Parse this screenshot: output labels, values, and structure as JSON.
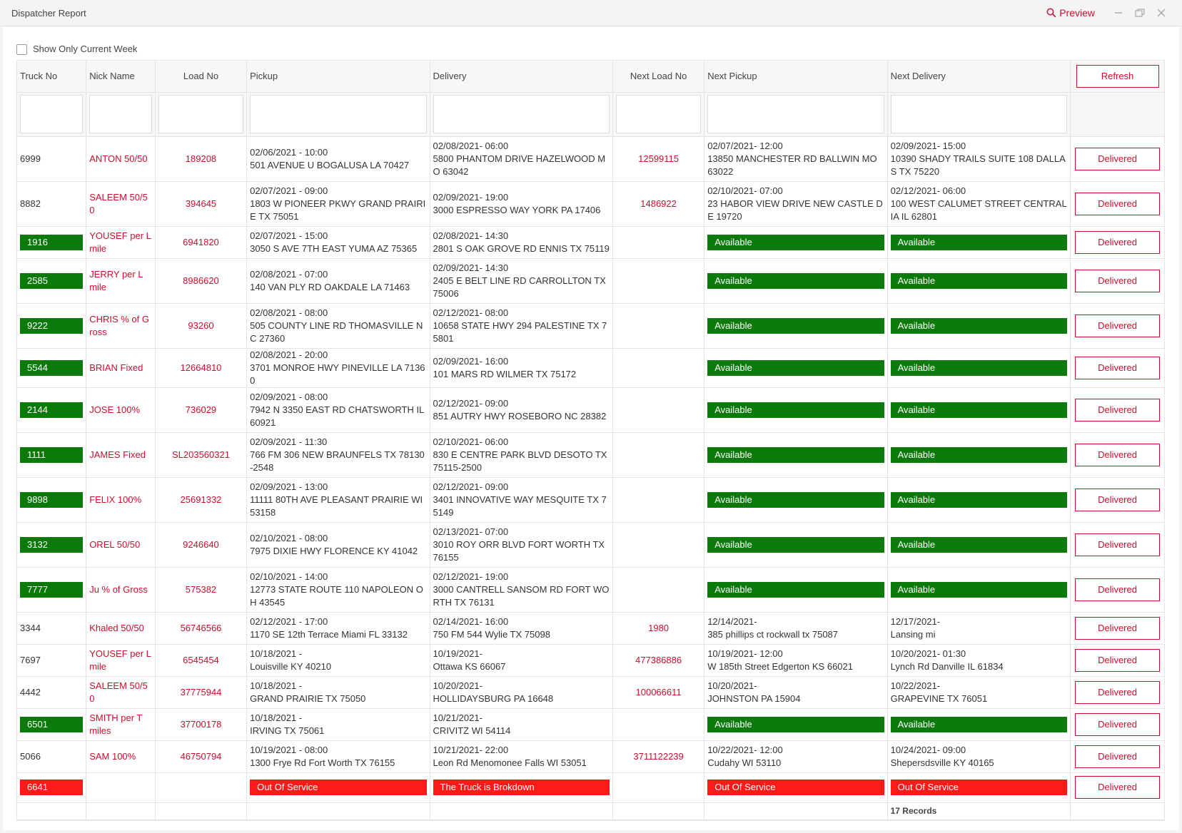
{
  "window": {
    "title": "Dispatcher Report",
    "preview_label": "Preview",
    "accent_color": "#c8102e"
  },
  "filter": {
    "show_current_week_label": "Show Only Current Week",
    "checked": false
  },
  "columns": {
    "truck_no": "Truck No",
    "nick_name": "Nick Name",
    "load_no": "Load No",
    "pickup": "Pickup",
    "delivery": "Delivery",
    "next_load_no": "Next Load No",
    "next_pickup": "Next Pickup",
    "next_delivery": "Next Delivery",
    "refresh_label": "Refresh"
  },
  "rows": [
    {
      "truck": "6999",
      "truck_status": "none",
      "nick": "ANTON 50/50",
      "load": "189208",
      "pickup": "02/06/2021 - 10:00\n501 AVENUE U BOGALUSA LA 70427",
      "delivery": "02/08/2021- 06:00\n5800 PHANTOM DRIVE HAZELWOOD MO 63042",
      "next_load": "12599115",
      "next_pickup": "02/07/2021- 12:00\n13850 MANCHESTER RD BALLWIN MO 63022",
      "next_delivery": "02/09/2021- 15:00\n10390 SHADY TRAILS SUITE 108 DALLAS TX 75220",
      "status": "Delivered"
    },
    {
      "truck": "8882",
      "truck_status": "none",
      "nick": "SALEEM 50/50",
      "load": "394645",
      "pickup": "02/07/2021 - 09:00\n1803 W PIONEER PKWY GRAND PRAIRIE TX 75051",
      "delivery": "02/09/2021- 19:00\n3000 ESPRESSO WAY YORK PA 17406",
      "next_load": "1486922",
      "next_pickup": "02/10/2021- 07:00\n23 HABOR VIEW DRIVE NEW CASTLE DE 19720",
      "next_delivery": "02/12/2021- 06:00\n100 WEST CALUMET STREET CENTRALIA IL 62801",
      "status": "Delivered"
    },
    {
      "truck": "1916",
      "truck_status": "available",
      "nick": "YOUSEF per L mile",
      "load": "6941820",
      "pickup": "02/07/2021 - 15:00\n3050 S AVE 7TH EAST YUMA AZ 75365",
      "delivery": "02/08/2021- 14:30\n2801 S OAK GROVE RD ENNIS TX 75119",
      "next_load": "",
      "next_pickup": "Available",
      "next_delivery": "Available",
      "status": "Delivered"
    },
    {
      "truck": "2585",
      "truck_status": "available",
      "nick": "JERRY per L mile",
      "load": "8986620",
      "pickup": "02/08/2021 - 07:00\n140 VAN PLY RD OAKDALE LA 71463",
      "delivery": "02/09/2021- 14:30\n2405 E BELT LINE RD CARROLLTON TX 75006",
      "next_load": "",
      "next_pickup": "Available",
      "next_delivery": "Available",
      "status": "Delivered"
    },
    {
      "truck": "9222",
      "truck_status": "available",
      "nick": "CHRIS % of Gross",
      "load": "93260",
      "pickup": "02/08/2021 - 08:00\n505 COUNTY LINE RD THOMASVILLE NC 27360",
      "delivery": "02/12/2021- 08:00\n10658 STATE HWY 294 PALESTINE TX 75801",
      "next_load": "",
      "next_pickup": "Available",
      "next_delivery": "Available",
      "status": "Delivered"
    },
    {
      "truck": "5544",
      "truck_status": "available",
      "nick": "BRIAN Fixed",
      "load": "12664810",
      "pickup": "02/08/2021 - 20:00\n3701 MONROE HWY PINEVILLE LA 71360",
      "delivery": "02/09/2021- 16:00\n101 MARS RD WILMER TX 75172",
      "next_load": "",
      "next_pickup": "Available",
      "next_delivery": "Available",
      "status": "Delivered"
    },
    {
      "truck": "2144",
      "truck_status": "available",
      "nick": "JOSE 100%",
      "load": "736029",
      "pickup": "02/09/2021 - 08:00\n7942 N 3350 EAST RD CHATSWORTH IL 60921",
      "delivery": "02/12/2021- 09:00\n851 AUTRY HWY ROSEBORO NC 28382",
      "next_load": "",
      "next_pickup": "Available",
      "next_delivery": "Available",
      "status": "Delivered"
    },
    {
      "truck": "1111",
      "truck_status": "available",
      "nick": "JAMES Fixed",
      "load": "SL203560321",
      "pickup": "02/09/2021 - 11:30\n766 FM 306 NEW BRAUNFELS TX 78130-2548",
      "delivery": "02/10/2021- 06:00\n830 E CENTRE PARK BLVD DESOTO TX 75115-2500",
      "next_load": "",
      "next_pickup": "Available",
      "next_delivery": "Available",
      "status": "Delivered"
    },
    {
      "truck": "9898",
      "truck_status": "available",
      "nick": "FELIX 100%",
      "load": "25691332",
      "pickup": "02/09/2021 - 13:00\n11111 80TH AVE PLEASANT PRAIRIE WI 53158",
      "delivery": "02/12/2021- 09:00\n3401 INNOVATIVE WAY MESQUITE TX 75149",
      "next_load": "",
      "next_pickup": "Available",
      "next_delivery": "Available",
      "status": "Delivered"
    },
    {
      "truck": "3132",
      "truck_status": "available",
      "nick": "OREL 50/50",
      "load": "9246640",
      "pickup": "02/10/2021 - 08:00\n7975 DIXIE HWY FLORENCE KY 41042",
      "delivery": "02/13/2021- 07:00\n3010 ROY ORR BLVD FORT WORTH TX 76155",
      "next_load": "",
      "next_pickup": "Available",
      "next_delivery": "Available",
      "status": "Delivered"
    },
    {
      "truck": "7777",
      "truck_status": "available",
      "nick": "Ju % of Gross",
      "load": "575382",
      "pickup": "02/10/2021 - 14:00\n12773 STATE ROUTE 110 NAPOLEON OH 43545",
      "delivery": "02/12/2021- 19:00\n3000 CANTRELL SANSOM RD FORT WORTH TX 76131",
      "next_load": "",
      "next_pickup": "Available",
      "next_delivery": "Available",
      "status": "Delivered"
    },
    {
      "truck": "3344",
      "truck_status": "none",
      "nick": "Khaled 50/50",
      "load": "56746566",
      "pickup": "02/12/2021 - 17:00\n1170 SE 12th Terrace Miami FL 33132",
      "delivery": "02/14/2021- 16:00\n750 FM 544 Wylie TX 75098",
      "next_load": "1980",
      "next_pickup": "12/14/2021-\n385 phillips ct rockwall tx 75087",
      "next_delivery": "12/17/2021-\nLansing mi",
      "status": "Delivered"
    },
    {
      "truck": "7697",
      "truck_status": "none",
      "nick": "YOUSEF per L mile",
      "load": "6545454",
      "pickup": "10/18/2021 -\nLouisville KY 40210",
      "delivery": "10/19/2021-\nOttawa KS 66067",
      "next_load": "477386886",
      "next_pickup": "10/19/2021- 12:00\nW 185th Street Edgerton KS 66021",
      "next_delivery": "10/20/2021- 01:30\nLynch Rd Danville IL 61834",
      "status": "Delivered"
    },
    {
      "truck": "4442",
      "truck_status": "none",
      "nick": "SALEEM 50/50",
      "load": "37775944",
      "pickup": "10/18/2021 -\nGRAND PRAIRIE TX 75050",
      "delivery": "10/20/2021-\nHOLLIDAYSBURG PA 16648",
      "next_load": "100066611",
      "next_pickup": "10/20/2021-\nJOHNSTON PA 15904",
      "next_delivery": "10/22/2021-\nGRAPEVINE TX 76051",
      "status": "Delivered"
    },
    {
      "truck": "6501",
      "truck_status": "available",
      "nick": "SMITH per T miles",
      "load": "37700178",
      "pickup": "10/18/2021 -\nIRVING TX 75061",
      "delivery": "10/21/2021-\nCRIVITZ WI 54114",
      "next_load": "",
      "next_pickup": "Available",
      "next_delivery": "Available",
      "status": "Delivered"
    },
    {
      "truck": "5066",
      "truck_status": "none",
      "nick": "SAM 100%",
      "load": "46750794",
      "pickup": "10/19/2021 - 08:00\n1300 Frye Rd Fort Worth TX 76155",
      "delivery": "10/21/2021- 22:00\nLeon Rd Menomonee Falls WI 53051",
      "next_load": "3711122239",
      "next_pickup": "10/22/2021- 12:00\nCudahy WI 53110",
      "next_delivery": "10/24/2021- 09:00\nShepersdsville KY 40165",
      "status": "Delivered"
    },
    {
      "truck": "6641",
      "truck_status": "out",
      "nick": "",
      "load": "",
      "pickup": "Out Of Service",
      "delivery": "The Truck is Brokdown",
      "next_load": "",
      "next_pickup": "Out Of Service",
      "next_delivery": "Out Of Service",
      "status": "Delivered"
    }
  ],
  "footer": {
    "records": "17 Records"
  },
  "colors": {
    "available_green": "#0b7a0b",
    "out_red": "#ff1a1a",
    "link_red": "#c8102e"
  }
}
